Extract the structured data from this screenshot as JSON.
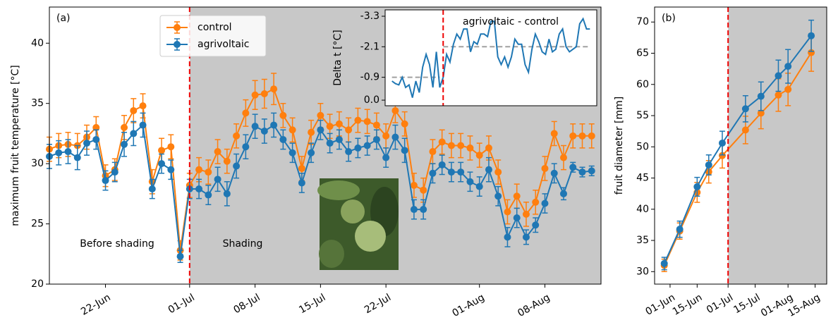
{
  "chart_data": [
    {
      "type": "line",
      "ylabel": "maximum fruit temperature [°C]",
      "annotations": [
        "(a)",
        "Before shading",
        "Shading"
      ],
      "x": [
        "16-Jun",
        "17-Jun",
        "18-Jun",
        "19-Jun",
        "20-Jun",
        "21-Jun",
        "22-Jun",
        "23-Jun",
        "24-Jun",
        "25-Jun",
        "26-Jun",
        "27-Jun",
        "28-Jun",
        "29-Jun",
        "30-Jun",
        "01-Jul",
        "02-Jul",
        "03-Jul",
        "04-Jul",
        "05-Jul",
        "06-Jul",
        "07-Jul",
        "08-Jul",
        "09-Jul",
        "10-Jul",
        "11-Jul",
        "12-Jul",
        "13-Jul",
        "14-Jul",
        "15-Jul",
        "16-Jul",
        "17-Jul",
        "18-Jul",
        "19-Jul",
        "20-Jul",
        "21-Jul",
        "22-Jul",
        "23-Jul",
        "24-Jul",
        "25-Jul",
        "26-Jul",
        "27-Jul",
        "28-Jul",
        "29-Jul",
        "30-Jul",
        "31-Jul",
        "01-Aug",
        "02-Aug",
        "03-Aug",
        "04-Aug",
        "05-Aug",
        "06-Aug",
        "07-Aug",
        "08-Aug",
        "09-Aug",
        "10-Aug",
        "11-Aug",
        "12-Aug",
        "13-Aug"
      ],
      "series": [
        {
          "name": "control",
          "color": "#ff7f0e",
          "values": [
            31.2,
            31.5,
            31.6,
            31.5,
            32.2,
            33.0,
            29.0,
            29.5,
            33.0,
            34.4,
            34.8,
            28.5,
            31.1,
            31.4,
            22.8,
            28.2,
            29.5,
            29.3,
            31.0,
            30.2,
            32.3,
            34.2,
            35.7,
            35.8,
            36.2,
            34.0,
            32.8,
            29.6,
            32.6,
            34.0,
            33.1,
            33.3,
            32.8,
            33.6,
            33.5,
            33.2,
            32.3,
            34.4,
            33.3,
            28.2,
            27.8,
            31.0,
            31.8,
            31.5,
            31.5,
            31.3,
            30.7,
            31.3,
            29.3,
            26.0,
            27.3,
            25.8,
            26.8,
            29.6,
            32.5,
            30.5,
            32.3,
            32.3,
            32.3
          ],
          "errors": [
            1.0,
            1.0,
            1.0,
            1.0,
            1.0,
            0.9,
            0.9,
            0.9,
            1.0,
            1.0,
            1.0,
            1.0,
            1.0,
            1.0,
            0.8,
            1.0,
            1.0,
            1.0,
            1.0,
            1.0,
            1.0,
            1.1,
            1.2,
            1.2,
            1.3,
            1.0,
            1.0,
            1.0,
            1.0,
            1.0,
            1.0,
            1.0,
            1.0,
            1.0,
            1.0,
            1.0,
            1.0,
            1.0,
            1.0,
            1.0,
            1.0,
            1.0,
            1.0,
            1.0,
            1.0,
            1.0,
            1.0,
            1.0,
            1.0,
            1.0,
            1.0,
            1.0,
            1.0,
            1.0,
            1.0,
            1.0,
            1.0,
            1.0,
            1.0
          ]
        },
        {
          "name": "agrivoltaic",
          "color": "#1f77b4",
          "values": [
            30.6,
            30.9,
            31.0,
            30.5,
            31.7,
            32.0,
            28.6,
            29.3,
            31.6,
            32.5,
            33.2,
            27.9,
            30.0,
            29.5,
            22.3,
            27.9,
            27.9,
            27.4,
            28.7,
            27.5,
            29.8,
            31.4,
            33.1,
            32.7,
            33.2,
            32.0,
            30.9,
            28.4,
            30.9,
            32.8,
            31.7,
            32.0,
            31.0,
            31.3,
            31.5,
            32.0,
            30.5,
            32.2,
            31.1,
            26.2,
            26.2,
            29.2,
            29.9,
            29.3,
            29.3,
            28.5,
            28.1,
            29.5,
            27.3,
            23.9,
            25.5,
            23.9,
            24.9,
            26.7,
            29.2,
            27.5,
            29.7,
            29.3,
            29.4
          ],
          "errors": [
            1.0,
            1.0,
            1.0,
            1.0,
            1.0,
            0.8,
            0.8,
            0.8,
            1.0,
            1.0,
            1.0,
            0.8,
            0.8,
            0.8,
            0.5,
            0.8,
            0.8,
            0.8,
            1.0,
            1.0,
            1.0,
            1.0,
            1.0,
            1.0,
            1.0,
            0.8,
            0.8,
            0.8,
            0.8,
            0.8,
            0.8,
            0.8,
            0.8,
            0.8,
            0.8,
            0.8,
            0.8,
            1.0,
            1.0,
            0.8,
            0.8,
            0.8,
            0.8,
            0.8,
            0.8,
            0.8,
            0.8,
            1.0,
            0.8,
            0.8,
            0.8,
            0.6,
            0.6,
            0.8,
            0.8,
            0.5,
            0.4,
            0.4,
            0.4
          ]
        }
      ],
      "xlim": [
        "16-Jun",
        "14-Aug"
      ],
      "xticks": [
        "22-Jun",
        "01-Jul",
        "08-Jul",
        "15-Jul",
        "22-Jul",
        "01-Aug",
        "08-Aug"
      ],
      "ylim": [
        20,
        43
      ],
      "yticks": [
        20,
        25,
        30,
        35,
        40
      ],
      "shaded_from": "01-Jul",
      "vline": "01-Jul",
      "legend": "upper center",
      "markers": true
    },
    {
      "type": "line",
      "ylabel": "Delta t [°C]",
      "annotations": [
        "agrivoltaic - control"
      ],
      "x": [
        "16-Jun",
        "17-Jun",
        "18-Jun",
        "19-Jun",
        "20-Jun",
        "21-Jun",
        "22-Jun",
        "23-Jun",
        "24-Jun",
        "25-Jun",
        "26-Jun",
        "27-Jun",
        "28-Jun",
        "29-Jun",
        "30-Jun",
        "01-Jul",
        "02-Jul",
        "03-Jul",
        "04-Jul",
        "05-Jul",
        "06-Jul",
        "07-Jul",
        "08-Jul",
        "09-Jul",
        "10-Jul",
        "11-Jul",
        "12-Jul",
        "13-Jul",
        "14-Jul",
        "15-Jul",
        "16-Jul",
        "17-Jul",
        "18-Jul",
        "19-Jul",
        "20-Jul",
        "21-Jul",
        "22-Jul",
        "23-Jul",
        "24-Jul",
        "25-Jul",
        "26-Jul",
        "27-Jul",
        "28-Jul",
        "29-Jul",
        "30-Jul",
        "31-Jul",
        "01-Aug",
        "02-Aug",
        "03-Aug",
        "04-Aug",
        "05-Aug",
        "06-Aug",
        "07-Aug",
        "08-Aug",
        "09-Aug",
        "10-Aug",
        "11-Aug",
        "12-Aug",
        "13-Aug"
      ],
      "series": [
        {
          "color": "#1f77b4",
          "values": [
            -0.75,
            -0.65,
            -0.6,
            -0.9,
            -0.5,
            -0.6,
            -0.1,
            -0.75,
            -0.3,
            -1.3,
            -1.8,
            -1.4,
            -0.5,
            -1.9,
            -0.5,
            -0.9,
            -1.8,
            -1.5,
            -2.2,
            -2.6,
            -2.4,
            -2.8,
            -2.8,
            -1.9,
            -2.3,
            -2.2,
            -2.6,
            -2.6,
            -2.5,
            -3.1,
            -3.1,
            -1.7,
            -1.4,
            -1.7,
            -1.3,
            -1.7,
            -2.4,
            -2.2,
            -2.2,
            -1.4,
            -1.1,
            -2.0,
            -2.6,
            -2.3,
            -1.9,
            -1.8,
            -2.4,
            -1.9,
            -2.0,
            -2.6,
            -2.8,
            -2.1,
            -1.9,
            -2.0,
            -2.1,
            -3.0,
            -3.2,
            -2.8,
            -2.8
          ]
        }
      ],
      "mean_lines": [
        {
          "from": "16-Jun",
          "to": "30-Jun",
          "value": -0.9
        },
        {
          "from": "01-Jul",
          "to": "13-Aug",
          "value": -2.1
        }
      ],
      "xlim": [
        "14-Jun",
        "15-Aug"
      ],
      "ylim": [
        0.22,
        -3.55
      ],
      "yticks": [
        {
          "value": 0,
          "label": "0.0"
        },
        -0.9,
        -2.1,
        -3.3
      ],
      "vline": "01-Jul"
    },
    {
      "type": "line",
      "ylabel": "fruit diameter [mm]",
      "annotations": [
        "(b)"
      ],
      "x": [
        "29-May",
        "06-Jun",
        "15-Jun",
        "21-Jun",
        "28-Jun",
        "10-Jul",
        "18-Jul",
        "27-Jul",
        "01-Aug",
        "13-Aug"
      ],
      "series": [
        {
          "name": "control",
          "color": "#ff7f0e",
          "values": [
            31.0,
            36.5,
            42.7,
            46.0,
            48.6,
            52.7,
            55.4,
            58.3,
            59.2,
            65.1
          ],
          "errors": [
            1.0,
            1.3,
            1.6,
            1.8,
            2.0,
            2.2,
            2.5,
            2.6,
            2.6,
            3.0
          ]
        },
        {
          "name": "agrivoltaic",
          "color": "#1f77b4",
          "values": [
            31.3,
            36.8,
            43.6,
            47.1,
            50.6,
            56.1,
            58.1,
            61.4,
            62.9,
            67.8
          ],
          "errors": [
            1.0,
            1.3,
            1.5,
            1.6,
            1.9,
            2.1,
            2.3,
            2.5,
            2.7,
            2.5
          ]
        }
      ],
      "xlim": [
        "24-May",
        "21-Aug"
      ],
      "xticks": [
        "01-Jun",
        "15-Jun",
        "01-Jul",
        "15-Jul",
        "01-Aug",
        "15-Aug"
      ],
      "ylim": [
        28.0,
        72.4
      ],
      "yticks": [
        30,
        35,
        40,
        45,
        50,
        55,
        60,
        65,
        70
      ],
      "shaded_from": "01-Jul",
      "vline": "01-Jul",
      "markers": true
    }
  ]
}
